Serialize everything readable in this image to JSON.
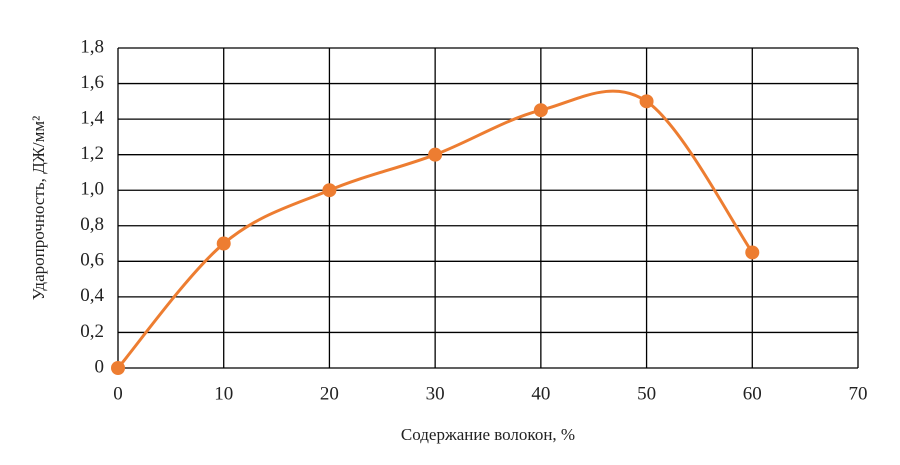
{
  "chart_data": {
    "type": "line",
    "xlabel": "Содержание волокон, %",
    "ylabel": "Ударопрочность, ДЖ/мм²",
    "x": [
      0,
      10,
      20,
      30,
      40,
      50,
      60
    ],
    "series": [
      {
        "name": "Ударопрочность",
        "color": "#ed7d31",
        "values": [
          0,
          0.7,
          1.0,
          1.2,
          1.45,
          1.5,
          0.65
        ]
      }
    ],
    "xlim": [
      0,
      70
    ],
    "xticks": [
      0,
      10,
      20,
      30,
      40,
      50,
      60,
      70
    ],
    "ylim": [
      0,
      1.8
    ],
    "yticks": [
      0,
      {
        "value": 0.2,
        "label": "0,2"
      },
      {
        "value": 0.4,
        "label": "0,4"
      },
      {
        "value": 0.6,
        "label": "0,6"
      },
      {
        "value": 0.8,
        "label": "0,8"
      },
      {
        "value": 1.0,
        "label": "1,0"
      },
      {
        "value": 1.2,
        "label": "1,2"
      },
      {
        "value": 1.4,
        "label": "1,4"
      },
      {
        "value": 1.6,
        "label": "1,6"
      },
      {
        "value": 1.8,
        "label": "1,8"
      }
    ],
    "grid": true,
    "smooth": true
  }
}
